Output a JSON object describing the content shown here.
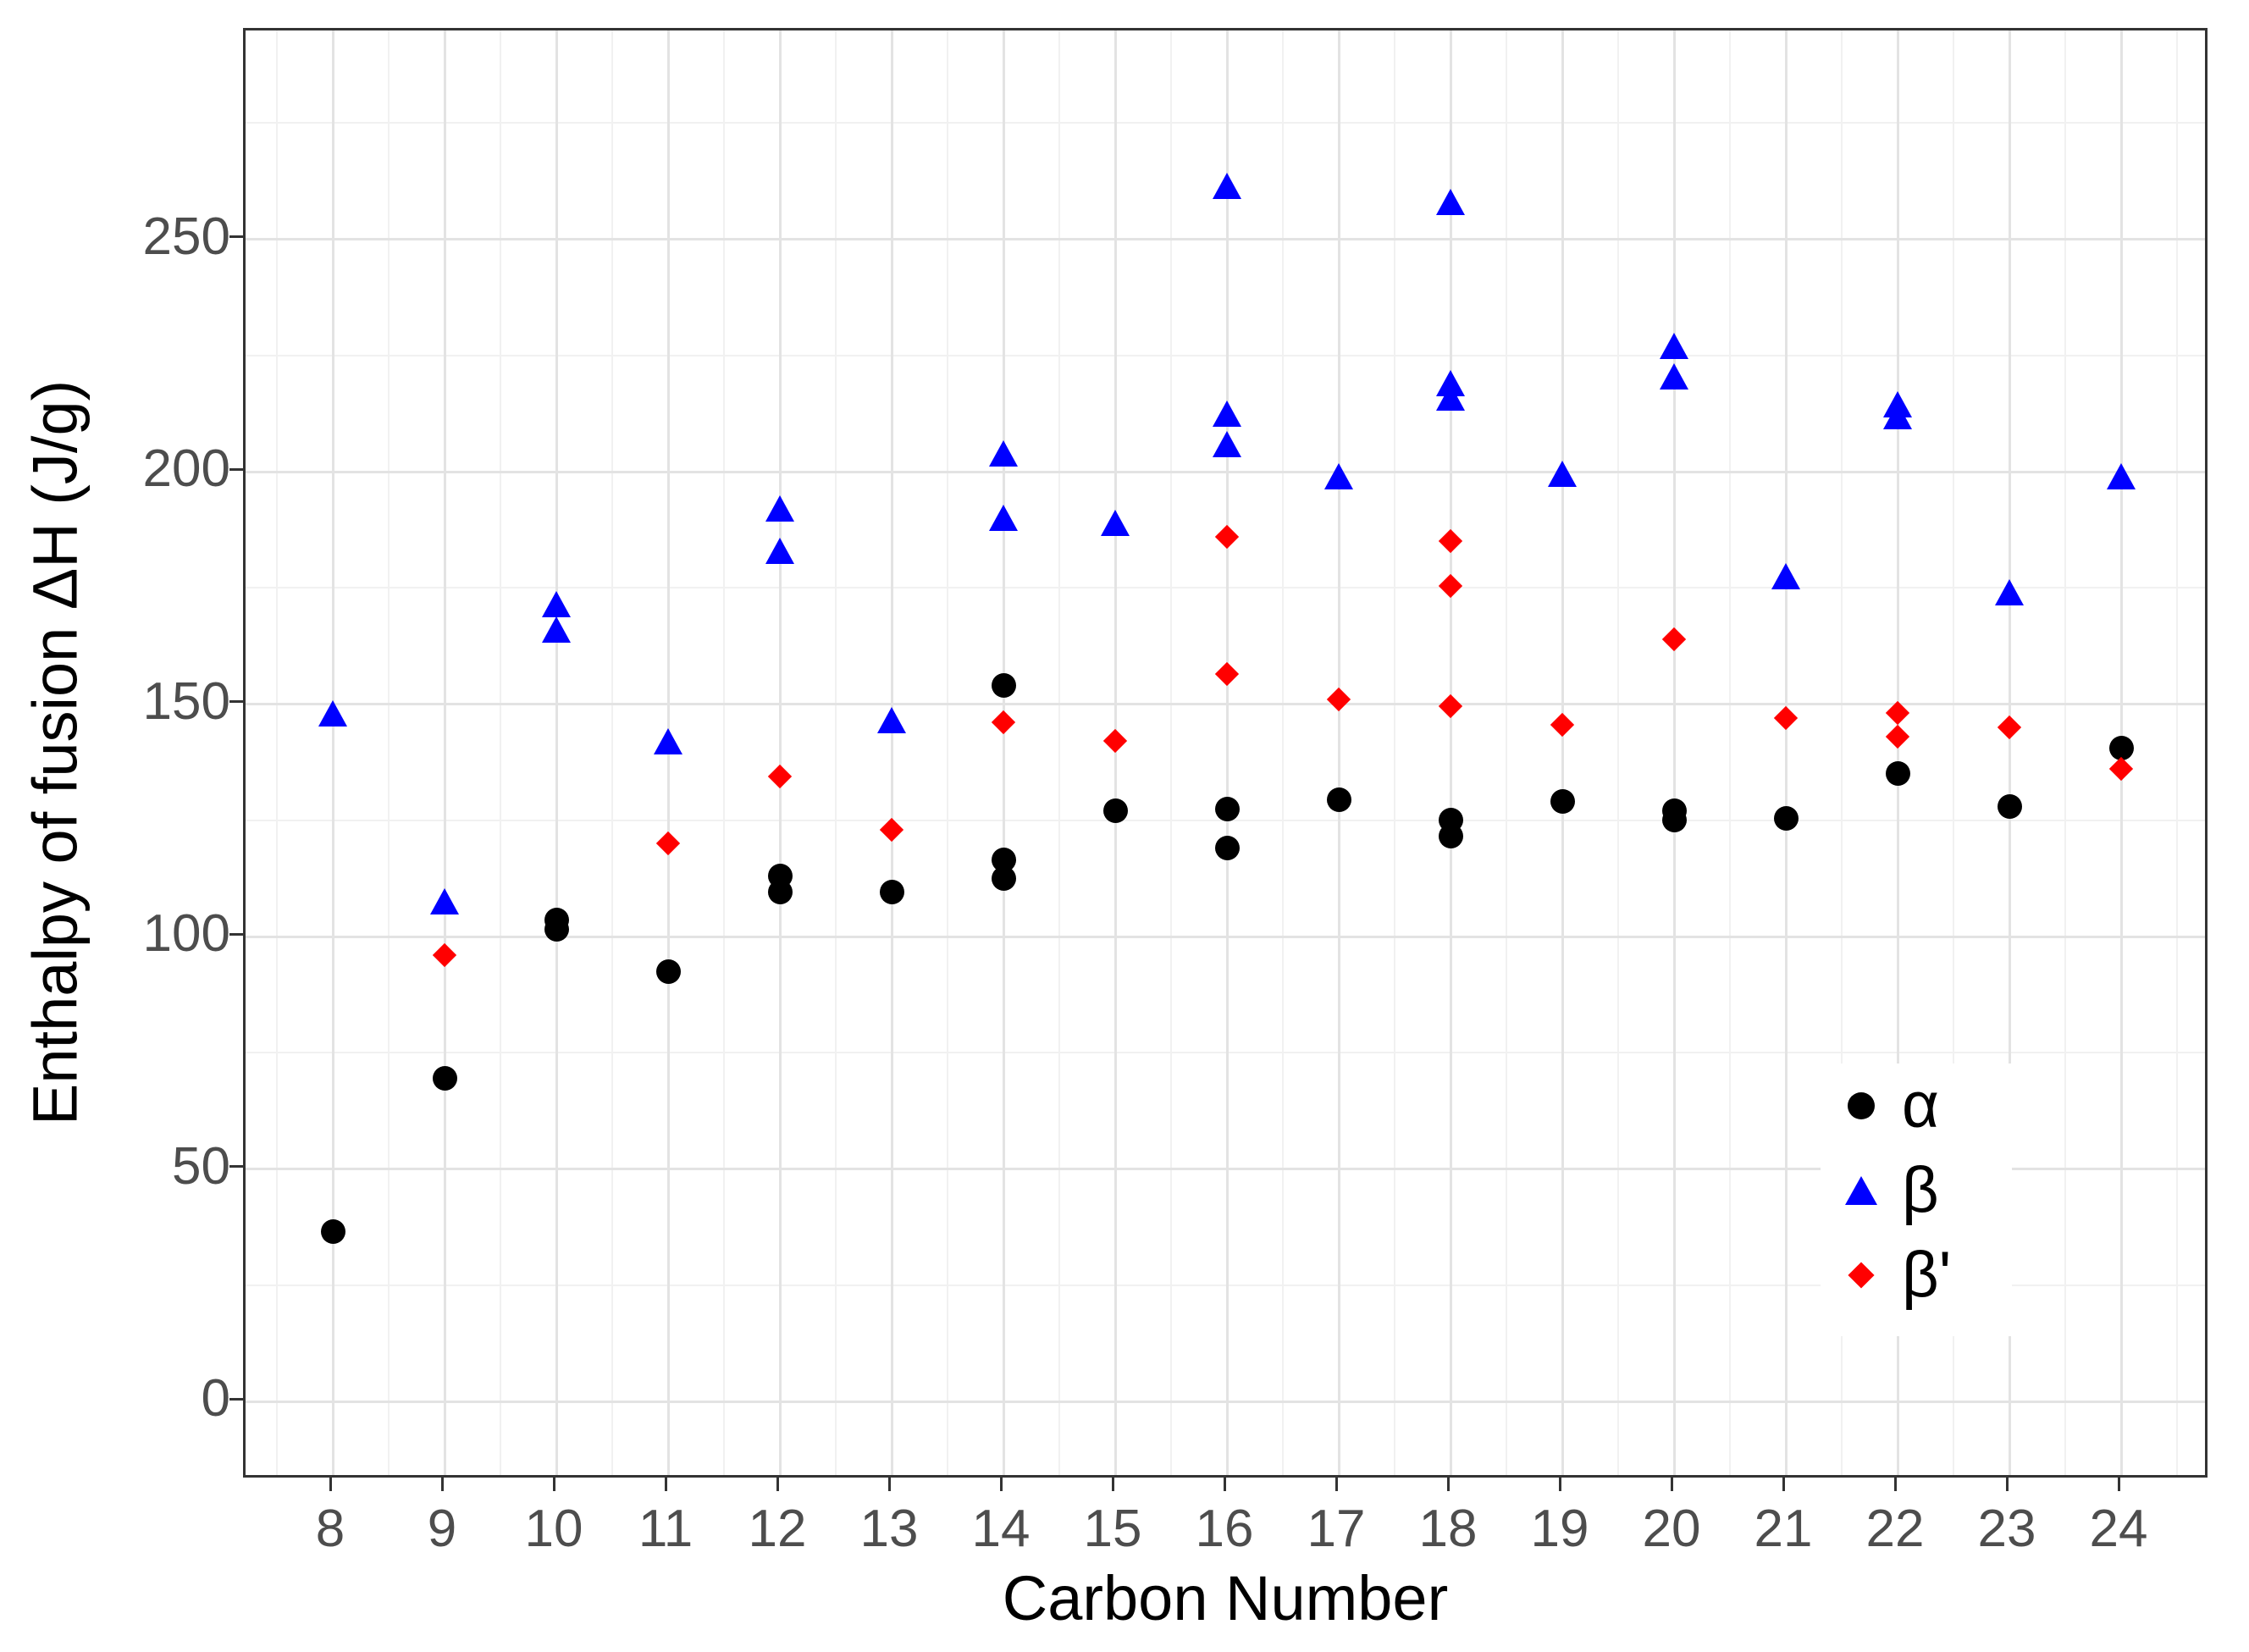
{
  "chart_data": {
    "type": "scatter",
    "title": "",
    "xlabel": "Carbon Number",
    "ylabel": "Enthalpy of fusion ΔH (J/g)",
    "x_ticks": [
      8,
      9,
      10,
      11,
      12,
      13,
      14,
      15,
      16,
      17,
      18,
      19,
      20,
      21,
      22,
      23,
      24
    ],
    "y_ticks": [
      0,
      50,
      100,
      150,
      200,
      250
    ],
    "y_minor_ticks": [
      25,
      75,
      125,
      175,
      225,
      275
    ],
    "xlim": [
      7.2,
      24.8
    ],
    "ylim": [
      -17,
      295
    ],
    "grid": "major and minor, light gray on white, full dark panel border",
    "legend_position": "inside bottom-right",
    "colors": {
      "alpha": "#000000",
      "beta": "#0000ff",
      "beta_prime": "#ff0000"
    },
    "series": [
      {
        "name": "α",
        "marker": "circle",
        "color": "#000000",
        "points": [
          [
            8,
            36.5
          ],
          [
            9,
            69.5
          ],
          [
            10,
            103.5
          ],
          [
            10,
            101.5
          ],
          [
            11,
            92.5
          ],
          [
            12,
            113
          ],
          [
            12,
            109.5
          ],
          [
            13,
            109.5
          ],
          [
            14,
            154
          ],
          [
            14,
            116.5
          ],
          [
            14,
            112.5
          ],
          [
            15,
            127
          ],
          [
            16,
            127.5
          ],
          [
            16,
            119
          ],
          [
            17,
            129.5
          ],
          [
            18,
            125
          ],
          [
            18,
            121.5
          ],
          [
            19,
            129
          ],
          [
            20,
            127
          ],
          [
            20,
            125
          ],
          [
            21,
            125.5
          ],
          [
            22,
            135
          ],
          [
            23,
            128
          ],
          [
            24,
            140.5
          ]
        ]
      },
      {
        "name": "β",
        "marker": "triangle",
        "color": "#0000ff",
        "points": [
          [
            8,
            148
          ],
          [
            9,
            107.5
          ],
          [
            10,
            171.5
          ],
          [
            10,
            166
          ],
          [
            11,
            142
          ],
          [
            12,
            192
          ],
          [
            12,
            183
          ],
          [
            13,
            146.5
          ],
          [
            14,
            204
          ],
          [
            14,
            190
          ],
          [
            15,
            189
          ],
          [
            16,
            261.5
          ],
          [
            16,
            212.5
          ],
          [
            16,
            206
          ],
          [
            17,
            199
          ],
          [
            18,
            258
          ],
          [
            18,
            219
          ],
          [
            18,
            216
          ],
          [
            19,
            199.5
          ],
          [
            20,
            227
          ],
          [
            20,
            220.5
          ],
          [
            21,
            177.5
          ],
          [
            22,
            214.5
          ],
          [
            22,
            212
          ],
          [
            23,
            174
          ],
          [
            24,
            199
          ]
        ]
      },
      {
        "name": "β'",
        "marker": "diamond",
        "color": "#ff0000",
        "points": [
          [
            9,
            96
          ],
          [
            11,
            120
          ],
          [
            12,
            134.5
          ],
          [
            13,
            123
          ],
          [
            14,
            146
          ],
          [
            15,
            142
          ],
          [
            16,
            186
          ],
          [
            16,
            156.5
          ],
          [
            17,
            151
          ],
          [
            18,
            185
          ],
          [
            18,
            175.5
          ],
          [
            18,
            149.5
          ],
          [
            19,
            145.5
          ],
          [
            20,
            164
          ],
          [
            21,
            147
          ],
          [
            22,
            148
          ],
          [
            22,
            143
          ],
          [
            23,
            145
          ],
          [
            24,
            136
          ]
        ]
      }
    ]
  }
}
